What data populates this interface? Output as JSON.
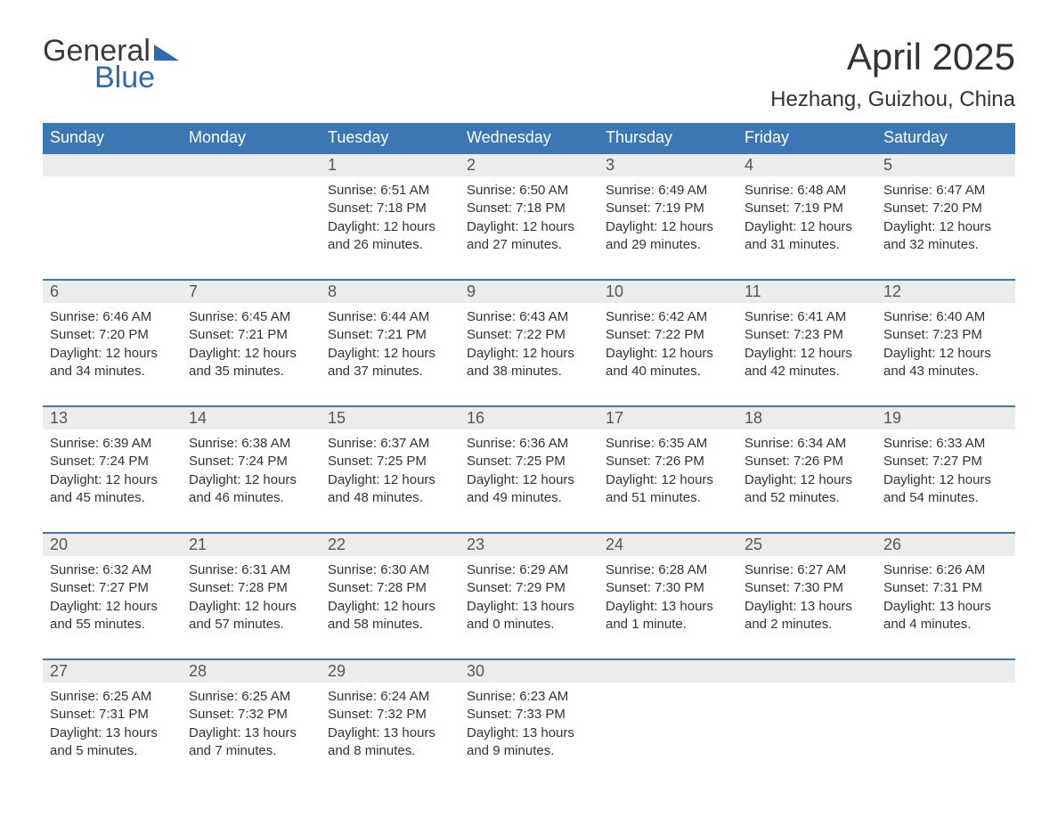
{
  "logo": {
    "word1": "General",
    "word2": "Blue"
  },
  "title": "April 2025",
  "location": "Hezhang, Guizhou, China",
  "colors": {
    "header_bg": "#3b77b5",
    "header_text": "#ffffff",
    "daynum_bg": "#ececec",
    "daynum_text": "#555555",
    "body_text": "#333333",
    "rule": "#3b77b5",
    "logo_gray": "#3a3a3a",
    "logo_blue": "#2f6aad",
    "page_bg": "#ffffff"
  },
  "typography": {
    "title_fontsize": 42,
    "location_fontsize": 24,
    "weekday_fontsize": 18,
    "daynum_fontsize": 18,
    "cell_fontsize": 15,
    "logo_fontsize": 34
  },
  "weekdays": [
    "Sunday",
    "Monday",
    "Tuesday",
    "Wednesday",
    "Thursday",
    "Friday",
    "Saturday"
  ],
  "weeks": [
    [
      null,
      null,
      {
        "day": "1",
        "sunrise": "Sunrise: 6:51 AM",
        "sunset": "Sunset: 7:18 PM",
        "daylight": "Daylight: 12 hours and 26 minutes."
      },
      {
        "day": "2",
        "sunrise": "Sunrise: 6:50 AM",
        "sunset": "Sunset: 7:18 PM",
        "daylight": "Daylight: 12 hours and 27 minutes."
      },
      {
        "day": "3",
        "sunrise": "Sunrise: 6:49 AM",
        "sunset": "Sunset: 7:19 PM",
        "daylight": "Daylight: 12 hours and 29 minutes."
      },
      {
        "day": "4",
        "sunrise": "Sunrise: 6:48 AM",
        "sunset": "Sunset: 7:19 PM",
        "daylight": "Daylight: 12 hours and 31 minutes."
      },
      {
        "day": "5",
        "sunrise": "Sunrise: 6:47 AM",
        "sunset": "Sunset: 7:20 PM",
        "daylight": "Daylight: 12 hours and 32 minutes."
      }
    ],
    [
      {
        "day": "6",
        "sunrise": "Sunrise: 6:46 AM",
        "sunset": "Sunset: 7:20 PM",
        "daylight": "Daylight: 12 hours and 34 minutes."
      },
      {
        "day": "7",
        "sunrise": "Sunrise: 6:45 AM",
        "sunset": "Sunset: 7:21 PM",
        "daylight": "Daylight: 12 hours and 35 minutes."
      },
      {
        "day": "8",
        "sunrise": "Sunrise: 6:44 AM",
        "sunset": "Sunset: 7:21 PM",
        "daylight": "Daylight: 12 hours and 37 minutes."
      },
      {
        "day": "9",
        "sunrise": "Sunrise: 6:43 AM",
        "sunset": "Sunset: 7:22 PM",
        "daylight": "Daylight: 12 hours and 38 minutes."
      },
      {
        "day": "10",
        "sunrise": "Sunrise: 6:42 AM",
        "sunset": "Sunset: 7:22 PM",
        "daylight": "Daylight: 12 hours and 40 minutes."
      },
      {
        "day": "11",
        "sunrise": "Sunrise: 6:41 AM",
        "sunset": "Sunset: 7:23 PM",
        "daylight": "Daylight: 12 hours and 42 minutes."
      },
      {
        "day": "12",
        "sunrise": "Sunrise: 6:40 AM",
        "sunset": "Sunset: 7:23 PM",
        "daylight": "Daylight: 12 hours and 43 minutes."
      }
    ],
    [
      {
        "day": "13",
        "sunrise": "Sunrise: 6:39 AM",
        "sunset": "Sunset: 7:24 PM",
        "daylight": "Daylight: 12 hours and 45 minutes."
      },
      {
        "day": "14",
        "sunrise": "Sunrise: 6:38 AM",
        "sunset": "Sunset: 7:24 PM",
        "daylight": "Daylight: 12 hours and 46 minutes."
      },
      {
        "day": "15",
        "sunrise": "Sunrise: 6:37 AM",
        "sunset": "Sunset: 7:25 PM",
        "daylight": "Daylight: 12 hours and 48 minutes."
      },
      {
        "day": "16",
        "sunrise": "Sunrise: 6:36 AM",
        "sunset": "Sunset: 7:25 PM",
        "daylight": "Daylight: 12 hours and 49 minutes."
      },
      {
        "day": "17",
        "sunrise": "Sunrise: 6:35 AM",
        "sunset": "Sunset: 7:26 PM",
        "daylight": "Daylight: 12 hours and 51 minutes."
      },
      {
        "day": "18",
        "sunrise": "Sunrise: 6:34 AM",
        "sunset": "Sunset: 7:26 PM",
        "daylight": "Daylight: 12 hours and 52 minutes."
      },
      {
        "day": "19",
        "sunrise": "Sunrise: 6:33 AM",
        "sunset": "Sunset: 7:27 PM",
        "daylight": "Daylight: 12 hours and 54 minutes."
      }
    ],
    [
      {
        "day": "20",
        "sunrise": "Sunrise: 6:32 AM",
        "sunset": "Sunset: 7:27 PM",
        "daylight": "Daylight: 12 hours and 55 minutes."
      },
      {
        "day": "21",
        "sunrise": "Sunrise: 6:31 AM",
        "sunset": "Sunset: 7:28 PM",
        "daylight": "Daylight: 12 hours and 57 minutes."
      },
      {
        "day": "22",
        "sunrise": "Sunrise: 6:30 AM",
        "sunset": "Sunset: 7:28 PM",
        "daylight": "Daylight: 12 hours and 58 minutes."
      },
      {
        "day": "23",
        "sunrise": "Sunrise: 6:29 AM",
        "sunset": "Sunset: 7:29 PM",
        "daylight": "Daylight: 13 hours and 0 minutes."
      },
      {
        "day": "24",
        "sunrise": "Sunrise: 6:28 AM",
        "sunset": "Sunset: 7:30 PM",
        "daylight": "Daylight: 13 hours and 1 minute."
      },
      {
        "day": "25",
        "sunrise": "Sunrise: 6:27 AM",
        "sunset": "Sunset: 7:30 PM",
        "daylight": "Daylight: 13 hours and 2 minutes."
      },
      {
        "day": "26",
        "sunrise": "Sunrise: 6:26 AM",
        "sunset": "Sunset: 7:31 PM",
        "daylight": "Daylight: 13 hours and 4 minutes."
      }
    ],
    [
      {
        "day": "27",
        "sunrise": "Sunrise: 6:25 AM",
        "sunset": "Sunset: 7:31 PM",
        "daylight": "Daylight: 13 hours and 5 minutes."
      },
      {
        "day": "28",
        "sunrise": "Sunrise: 6:25 AM",
        "sunset": "Sunset: 7:32 PM",
        "daylight": "Daylight: 13 hours and 7 minutes."
      },
      {
        "day": "29",
        "sunrise": "Sunrise: 6:24 AM",
        "sunset": "Sunset: 7:32 PM",
        "daylight": "Daylight: 13 hours and 8 minutes."
      },
      {
        "day": "30",
        "sunrise": "Sunrise: 6:23 AM",
        "sunset": "Sunset: 7:33 PM",
        "daylight": "Daylight: 13 hours and 9 minutes."
      },
      null,
      null,
      null
    ]
  ]
}
